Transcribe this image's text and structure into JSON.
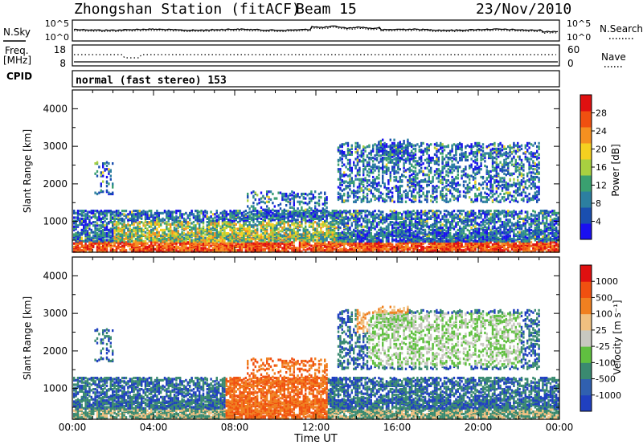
{
  "header": {
    "station": "Zhongshan Station (fitACF)",
    "beam": "Beam 15",
    "date": "23/Nov/2010"
  },
  "noise_panel": {
    "left_label": "N.Sky",
    "right_label": "N.Search",
    "left_ticks": [
      "10^5",
      "10^0"
    ],
    "right_ticks": [
      "10^5",
      "10^0"
    ]
  },
  "freq_panel": {
    "left_label_1": "Freq.",
    "left_label_2": "[MHz]",
    "right_label": "Nave",
    "left_ticks": [
      "18",
      "8"
    ],
    "right_ticks": [
      "60",
      "0"
    ]
  },
  "cpid": {
    "label": "CPID",
    "text": "normal (fast stereo) 153"
  },
  "x_axis": {
    "label": "Time UT",
    "ticks": [
      "00:00",
      "04:00",
      "08:00",
      "12:00",
      "16:00",
      "20:00",
      "00:00"
    ]
  },
  "chart_data": [
    {
      "type": "heatmap",
      "title": "",
      "xlabel": "Time UT",
      "ylabel": "Slant Range [km]",
      "xlim": [
        "00:00",
        "24:00"
      ],
      "ylim": [
        180,
        4500
      ],
      "yticks": [
        "4000",
        "3000",
        "2000",
        "1000"
      ],
      "colorbar": {
        "label": "Power [dB]",
        "ticks": [
          "28",
          "24",
          "20",
          "16",
          "12",
          "8",
          "4"
        ],
        "range": [
          0,
          30
        ],
        "colors": [
          "#1a10f0",
          "#1a4fb0",
          "#2c7fa0",
          "#3aa070",
          "#a8d040",
          "#f5d020",
          "#f59020",
          "#f05010",
          "#e01010"
        ]
      }
    },
    {
      "type": "heatmap",
      "title": "",
      "xlabel": "Time UT",
      "ylabel": "Slant Range [km]",
      "xlim": [
        "00:00",
        "24:00"
      ],
      "ylim": [
        180,
        4500
      ],
      "yticks": [
        "4000",
        "3000",
        "2000",
        "1000"
      ],
      "colorbar": {
        "label": "Velocity [m s⁻¹]",
        "ticks": [
          "1000",
          "500",
          "100",
          "25",
          "-25",
          "-100",
          "-500",
          "-1000"
        ],
        "colors": [
          "#2040c0",
          "#3060b0",
          "#3a8a70",
          "#60c040",
          "#c8c8c0",
          "#f0c080",
          "#f08020",
          "#f05010",
          "#e01010"
        ]
      }
    }
  ]
}
